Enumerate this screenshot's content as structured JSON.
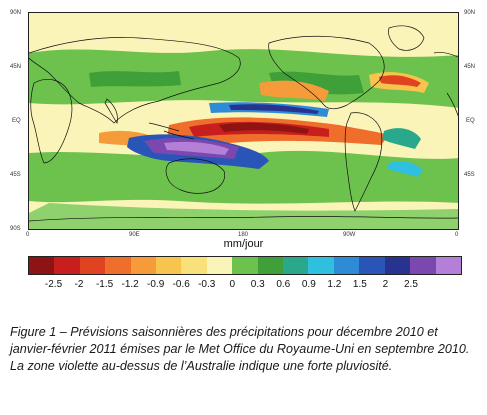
{
  "map": {
    "lat_labels": [
      "90N",
      "45N",
      "EQ",
      "45S",
      "90S"
    ],
    "lon_labels": [
      "0",
      "90E",
      "180",
      "90W",
      "0"
    ],
    "units": "mm/jour",
    "colorbar": {
      "colors": [
        "#8e1414",
        "#c81e1e",
        "#e0431f",
        "#ef6e2c",
        "#f59b3a",
        "#f7c44d",
        "#f9e07a",
        "#fbf4b8",
        "#6cc24c",
        "#3f9f39",
        "#2aa88c",
        "#2fc0e0",
        "#2e8bd6",
        "#2a55b8",
        "#27338f",
        "#7b48b0",
        "#b47fd6"
      ],
      "tick_labels": [
        "-2.5",
        "-2",
        "-1.5",
        "-1.2",
        "-0.9",
        "-0.6",
        "-0.3",
        "0",
        "0.3",
        "0.6",
        "0.9",
        "1.2",
        "1.5",
        "2",
        "2.5"
      ]
    }
  },
  "caption": "Figure 1 – Prévisions saisonnières des précipitations pour décembre 2010 et janvier-février 2011 émises par le Met Office du Royaume-Uni en septembre 2010. La zone violette au-dessus de l’Australie indique une forte pluviosité."
}
